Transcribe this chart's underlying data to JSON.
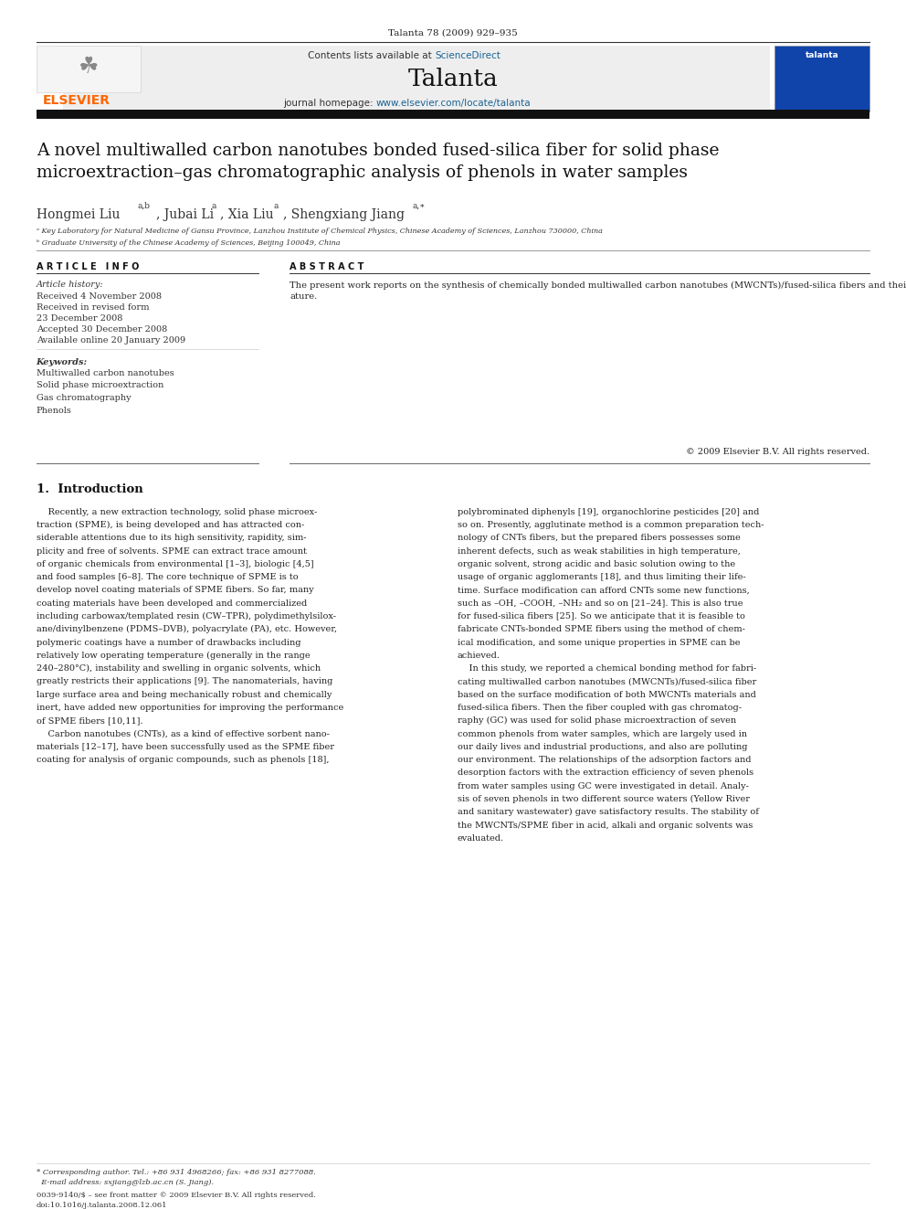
{
  "page_width": 9.92,
  "page_height": 13.23,
  "bg_color": "#ffffff",
  "header_citation": "Talanta 78 (2009) 929–935",
  "journal_name": "Talanta",
  "contents_line": "Contents lists available at ScienceDirect",
  "journal_homepage": "journal homepage: www.elsevier.com/locate/talanta",
  "header_bg": "#e8e8e8",
  "dark_bar_color": "#1a1a1a",
  "title_text": "A novel multiwalled carbon nanotubes bonded fused-silica fiber for solid phase\nmicroextraction–gas chromatographic analysis of phenols in water samples",
  "authors": "Hongmei Liu",
  "affil_a": "ᵃ Key Laboratory for Natural Medicine of Gansu Province, Lanzhou Institute of Chemical Physics, Chinese Academy of Sciences, Lanzhou 730000, China",
  "affil_b": "ᵇ Graduate University of the Chinese Academy of Sciences, Beijing 100049, China",
  "article_info_header": "A R T I C L E   I N F O",
  "abstract_header": "A B S T R A C T",
  "article_history_label": "Article history:",
  "received": "Received 4 November 2008",
  "received_revised1": "Received in revised form",
  "received_revised2": "23 December 2008",
  "accepted": "Accepted 30 December 2008",
  "available": "Available online 20 January 2009",
  "keywords_label": "Keywords:",
  "kw1": "Multiwalled carbon nanotubes",
  "kw2": "Solid phase microextraction",
  "kw3": "Gas chromatography",
  "kw4": "Phenols",
  "abstract_text": "The present work reports on the synthesis of chemically bonded multiwalled carbon nanotubes (MWCNTs)/fused-silica fibers and their use in solid phase microextraction of seven phenols from water samples coupled with gas chromatography (GC). The synthetic strategy was verified by infrared (IR) spectroscopy and field emission scanning electron microscopy. Adsorption factors (pH, ionic strength, stirring rate, adsorption time and temperature) and desorption factors (time and temperature) of the fibers were systematically investigated. Detection limits to seven phenols were less than 0.05 μg L⁻¹, and their calibration curves were all linear (R² ≥ 0.9984) in the range from 0.05 to 5000 μg L⁻¹. This method was then utilized to analyze two real water samples from Yellow River and sanitary wastewater, resulting in satisfactory results. Compared with normal solid phase materials, this MWCNTs-bonded fused-silica fibers showed a number of advantages; wide linear range and low detection limit for extracting phenols couple with GC, and good stability in acid, alkali, organic solvents and at high temper-\nature.",
  "copyright_text": "© 2009 Elsevier B.V. All rights reserved.",
  "intro_heading": "1.  Introduction",
  "intro_col1_lines": [
    "    Recently, a new extraction technology, solid phase microex-",
    "traction (SPME), is being developed and has attracted con-",
    "siderable attentions due to its high sensitivity, rapidity, sim-",
    "plicity and free of solvents. SPME can extract trace amount",
    "of organic chemicals from environmental [1–3], biologic [4,5]",
    "and food samples [6–8]. The core technique of SPME is to",
    "develop novel coating materials of SPME fibers. So far, many",
    "coating materials have been developed and commercialized",
    "including carbowax/templated resin (CW–TPR), polydimethylsilox-",
    "ane/divinylbenzene (PDMS–DVB), polyacrylate (PA), etc. However,",
    "polymeric coatings have a number of drawbacks including",
    "relatively low operating temperature (generally in the range",
    "240–280°C), instability and swelling in organic solvents, which",
    "greatly restricts their applications [9]. The nanomaterials, having",
    "large surface area and being mechanically robust and chemically",
    "inert, have added new opportunities for improving the performance",
    "of SPME fibers [10,11].",
    "    Carbon nanotubes (CNTs), as a kind of effective sorbent nano-",
    "materials [12–17], have been successfully used as the SPME fiber",
    "coating for analysis of organic compounds, such as phenols [18],"
  ],
  "intro_col2_lines": [
    "polybrominated diphenyls [19], organochlorine pesticides [20] and",
    "so on. Presently, agglutinate method is a common preparation tech-",
    "nology of CNTs fibers, but the prepared fibers possesses some",
    "inherent defects, such as weak stabilities in high temperature,",
    "organic solvent, strong acidic and basic solution owing to the",
    "usage of organic agglomerants [18], and thus limiting their life-",
    "time. Surface modification can afford CNTs some new functions,",
    "such as –OH, –COOH, –NH₂ and so on [21–24]. This is also true",
    "for fused-silica fibers [25]. So we anticipate that it is feasible to",
    "fabricate CNTs-bonded SPME fibers using the method of chem-",
    "ical modification, and some unique properties in SPME can be",
    "achieved.",
    "    In this study, we reported a chemical bonding method for fabri-",
    "cating multiwalled carbon nanotubes (MWCNTs)/fused-silica fiber",
    "based on the surface modification of both MWCNTs materials and",
    "fused-silica fibers. Then the fiber coupled with gas chromatog-",
    "raphy (GC) was used for solid phase microextraction of seven",
    "common phenols from water samples, which are largely used in",
    "our daily lives and industrial productions, and also are polluting",
    "our environment. The relationships of the adsorption factors and",
    "desorption factors with the extraction efficiency of seven phenols",
    "from water samples using GC were investigated in detail. Analy-",
    "sis of seven phenols in two different source waters (Yellow River",
    "and sanitary wastewater) gave satisfactory results. The stability of",
    "the MWCNTs/SPME fiber in acid, alkali and organic solvents was",
    "evaluated."
  ],
  "footer_note1": "* Corresponding author. Tel.: +86 931 4968266; fax: +86 931 8277088.",
  "footer_note2": "  E-mail address: sxjiang@lzb.ac.cn (S. Jiang).",
  "footer_text1": "0039-9140/$ – see front matter © 2009 Elsevier B.V. All rights reserved.",
  "footer_text2": "doi:10.1016/j.talanta.2008.12.061",
  "elsevier_color": "#ff6600",
  "sciencedirect_color": "#1a6496",
  "link_color": "#1a6496"
}
